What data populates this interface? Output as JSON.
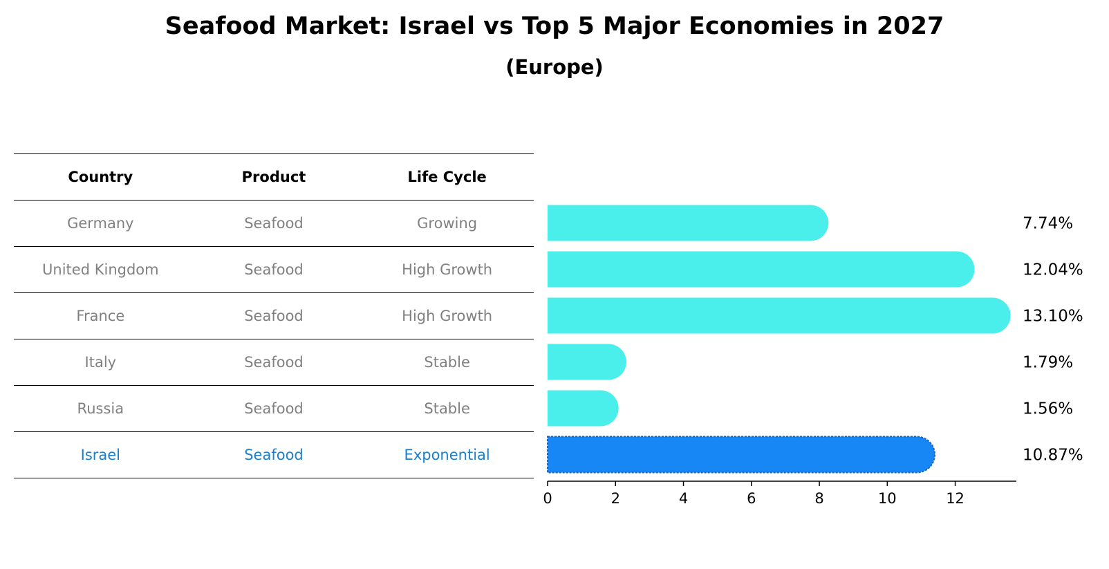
{
  "title": "Seafood Market: Israel vs Top 5 Major Economies in 2027",
  "subtitle": "(Europe)",
  "table": {
    "headers": [
      "Country",
      "Product",
      "Life Cycle"
    ],
    "rows": [
      [
        "Germany",
        "Seafood",
        "Growing"
      ],
      [
        "United Kingdom",
        "Seafood",
        "High Growth"
      ],
      [
        "France",
        "Seafood",
        "High Growth"
      ],
      [
        "Italy",
        "Seafood",
        "Stable"
      ],
      [
        "Russia",
        "Seafood",
        "Stable"
      ],
      [
        "Israel",
        "Seafood",
        "Exponential"
      ]
    ]
  },
  "chart_data": {
    "type": "bar",
    "orientation": "horizontal",
    "title": "Seafood Market: Israel vs Top 5 Major Economies in 2027",
    "subtitle": "(Europe)",
    "categories": [
      "Germany",
      "United Kingdom",
      "France",
      "Italy",
      "Russia",
      "Israel"
    ],
    "values": [
      7.74,
      12.04,
      13.1,
      1.79,
      1.56,
      10.87
    ],
    "value_labels": [
      "7.74%",
      "12.04%",
      "13.10%",
      "1.79%",
      "1.56%",
      "10.87%"
    ],
    "xlim": [
      0,
      13.8
    ],
    "xticks": [
      0,
      2,
      4,
      6,
      8,
      10,
      12
    ],
    "xlabel": "",
    "ylabel": "",
    "highlight": "Israel",
    "colors": {
      "default": "#4aeeea",
      "highlight": "#1787f5"
    },
    "grid": false
  }
}
